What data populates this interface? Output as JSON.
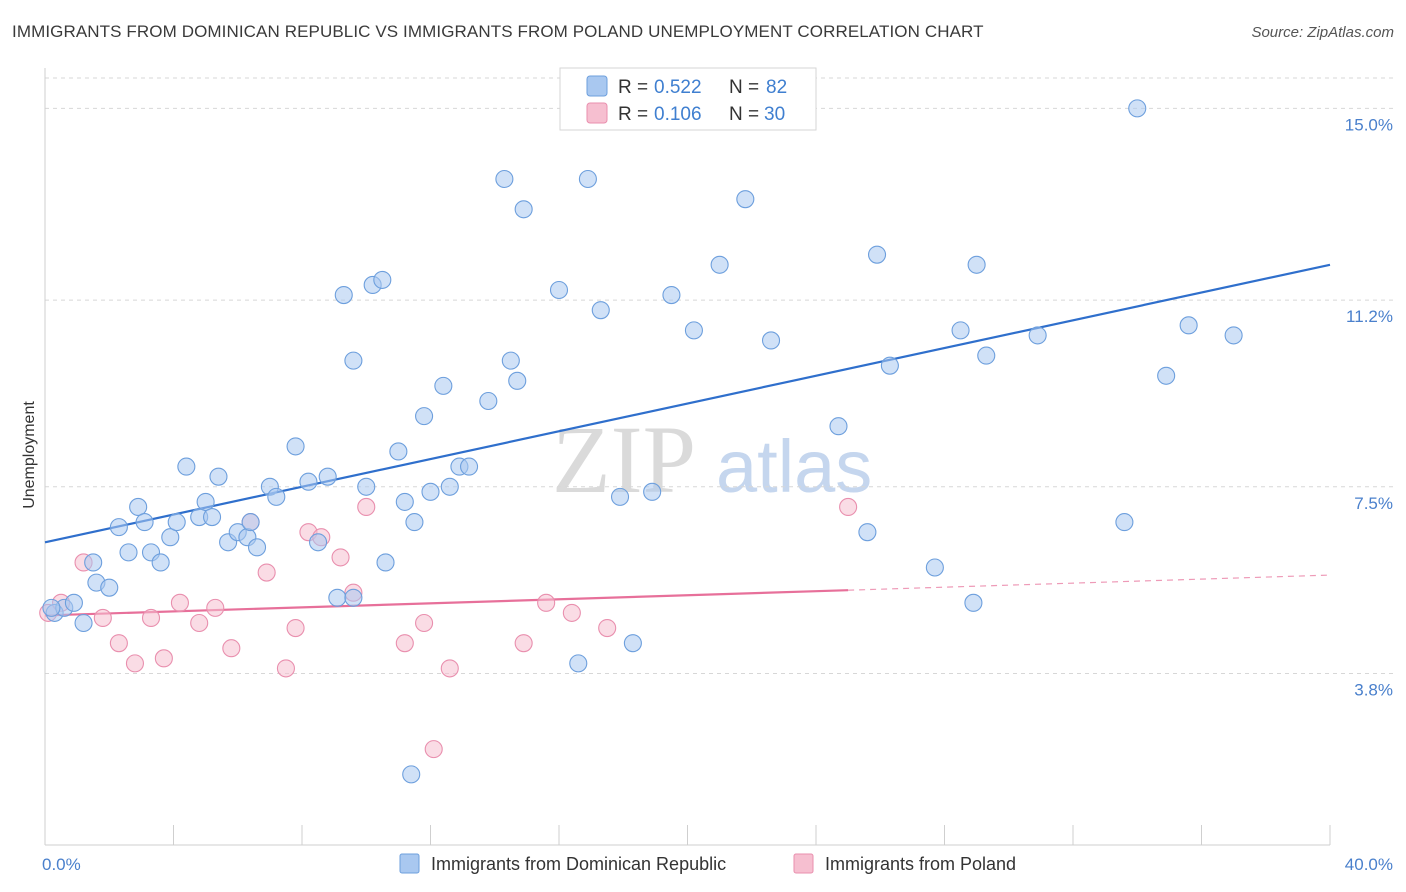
{
  "title": "IMMIGRANTS FROM DOMINICAN REPUBLIC VS IMMIGRANTS FROM POLAND UNEMPLOYMENT CORRELATION CHART",
  "source": "Source: ZipAtlas.com",
  "watermark": {
    "zip": "ZIP",
    "atlas": "atlas"
  },
  "colors": {
    "blue_fill": "#a9c8f0",
    "blue_stroke": "#6d9fdd",
    "blue_line": "#2f6fcc",
    "pink_fill": "#f6bfd0",
    "pink_stroke": "#e98fae",
    "pink_line": "#e7709a",
    "grid": "#d7d7d7",
    "axis_text": "#4a80cc"
  },
  "legend": {
    "r_label": "R =",
    "n_label": "N =",
    "series": [
      {
        "r": "0.522",
        "n": "82"
      },
      {
        "r": "0.106",
        "n": "30"
      }
    ]
  },
  "chart_data": {
    "type": "scatter",
    "title": "IMMIGRANTS FROM DOMINICAN REPUBLIC VS IMMIGRANTS FROM POLAND UNEMPLOYMENT CORRELATION CHART",
    "xlabel": "",
    "ylabel": "Unemployment",
    "xlim": [
      0,
      40
    ],
    "ylim": [
      0.4,
      15.8
    ],
    "x_tick_labels": [
      {
        "value": 0,
        "label": "0.0%"
      },
      {
        "value": 40,
        "label": "40.0%"
      }
    ],
    "y_tick_labels": [
      {
        "value": 3.8,
        "label": "3.8%"
      },
      {
        "value": 7.5,
        "label": "7.5%"
      },
      {
        "value": 11.2,
        "label": "11.2%"
      },
      {
        "value": 15.0,
        "label": "15.0%"
      }
    ],
    "y_gridlines": [
      3.8,
      7.5,
      11.2,
      15.0
    ],
    "x_minor_ticks": [
      0,
      4,
      8,
      12,
      16,
      20,
      24,
      28,
      32,
      36,
      40
    ],
    "grid": true,
    "legend_position": "top-center",
    "series": [
      {
        "name": "Immigrants from Dominican Republic",
        "color": "#a9c8f0",
        "trend": {
          "x": [
            0,
            40
          ],
          "y": [
            6.4,
            11.9
          ],
          "dashed_from": null
        },
        "points": [
          [
            0.3,
            5.0
          ],
          [
            0.6,
            5.1
          ],
          [
            0.9,
            5.2
          ],
          [
            1.2,
            4.8
          ],
          [
            1.6,
            5.6
          ],
          [
            2.0,
            5.5
          ],
          [
            1.5,
            6.0
          ],
          [
            2.3,
            6.7
          ],
          [
            2.6,
            6.2
          ],
          [
            2.9,
            7.1
          ],
          [
            3.1,
            6.8
          ],
          [
            3.3,
            6.2
          ],
          [
            3.6,
            6.0
          ],
          [
            3.9,
            6.5
          ],
          [
            4.1,
            6.8
          ],
          [
            4.4,
            7.9
          ],
          [
            4.8,
            6.9
          ],
          [
            5.0,
            7.2
          ],
          [
            5.2,
            6.9
          ],
          [
            5.4,
            7.7
          ],
          [
            5.7,
            6.4
          ],
          [
            6.0,
            6.6
          ],
          [
            6.3,
            6.5
          ],
          [
            6.4,
            6.8
          ],
          [
            6.6,
            6.3
          ],
          [
            7.0,
            7.5
          ],
          [
            7.2,
            7.3
          ],
          [
            7.8,
            8.3
          ],
          [
            8.2,
            7.6
          ],
          [
            8.5,
            6.4
          ],
          [
            8.8,
            7.7
          ],
          [
            9.1,
            5.3
          ],
          [
            9.6,
            5.3
          ],
          [
            9.3,
            11.3
          ],
          [
            9.6,
            10.0
          ],
          [
            10.0,
            7.5
          ],
          [
            10.2,
            11.5
          ],
          [
            10.5,
            11.6
          ],
          [
            10.6,
            6.0
          ],
          [
            11.0,
            8.2
          ],
          [
            11.2,
            7.2
          ],
          [
            11.4,
            1.8
          ],
          [
            11.5,
            6.8
          ],
          [
            11.8,
            8.9
          ],
          [
            12.0,
            7.4
          ],
          [
            12.4,
            9.5
          ],
          [
            12.6,
            7.5
          ],
          [
            12.9,
            7.9
          ],
          [
            13.2,
            7.9
          ],
          [
            13.8,
            9.2
          ],
          [
            14.3,
            13.6
          ],
          [
            14.5,
            10.0
          ],
          [
            14.9,
            13.0
          ],
          [
            14.7,
            9.6
          ],
          [
            16.0,
            11.4
          ],
          [
            16.6,
            4.0
          ],
          [
            16.9,
            13.6
          ],
          [
            17.3,
            11.0
          ],
          [
            17.9,
            7.3
          ],
          [
            18.3,
            4.4
          ],
          [
            18.9,
            7.4
          ],
          [
            19.5,
            11.3
          ],
          [
            20.2,
            10.6
          ],
          [
            21.0,
            11.9
          ],
          [
            21.8,
            13.2
          ],
          [
            22.6,
            10.4
          ],
          [
            24.7,
            8.7
          ],
          [
            25.6,
            6.6
          ],
          [
            25.9,
            12.1
          ],
          [
            26.3,
            9.9
          ],
          [
            27.7,
            5.9
          ],
          [
            29.0,
            11.9
          ],
          [
            28.9,
            5.2
          ],
          [
            28.5,
            10.6
          ],
          [
            29.3,
            10.1
          ],
          [
            30.9,
            10.5
          ],
          [
            34.0,
            15.0
          ],
          [
            34.9,
            9.7
          ],
          [
            33.6,
            6.8
          ],
          [
            35.6,
            10.7
          ],
          [
            37.0,
            10.5
          ],
          [
            0.2,
            5.1
          ]
        ]
      },
      {
        "name": "Immigrants from Poland",
        "color": "#f6bfd0",
        "trend": {
          "x": [
            0,
            40
          ],
          "y": [
            4.95,
            5.75
          ],
          "dashed_from": 25
        },
        "points": [
          [
            0.1,
            5.0
          ],
          [
            0.5,
            5.2
          ],
          [
            1.2,
            6.0
          ],
          [
            1.8,
            4.9
          ],
          [
            2.3,
            4.4
          ],
          [
            2.8,
            4.0
          ],
          [
            3.3,
            4.9
          ],
          [
            3.7,
            4.1
          ],
          [
            4.2,
            5.2
          ],
          [
            4.8,
            4.8
          ],
          [
            5.3,
            5.1
          ],
          [
            5.8,
            4.3
          ],
          [
            6.4,
            6.8
          ],
          [
            6.9,
            5.8
          ],
          [
            7.5,
            3.9
          ],
          [
            7.8,
            4.7
          ],
          [
            8.2,
            6.6
          ],
          [
            8.6,
            6.5
          ],
          [
            9.2,
            6.1
          ],
          [
            9.6,
            5.4
          ],
          [
            10.0,
            7.1
          ],
          [
            11.2,
            4.4
          ],
          [
            11.8,
            4.8
          ],
          [
            12.1,
            2.3
          ],
          [
            12.6,
            3.9
          ],
          [
            14.9,
            4.4
          ],
          [
            15.6,
            5.2
          ],
          [
            16.4,
            5.0
          ],
          [
            17.5,
            4.7
          ],
          [
            25.0,
            7.1
          ]
        ]
      }
    ]
  },
  "bottom_legend": [
    {
      "label": "Immigrants from Dominican Republic"
    },
    {
      "label": "Immigrants from Poland"
    }
  ]
}
